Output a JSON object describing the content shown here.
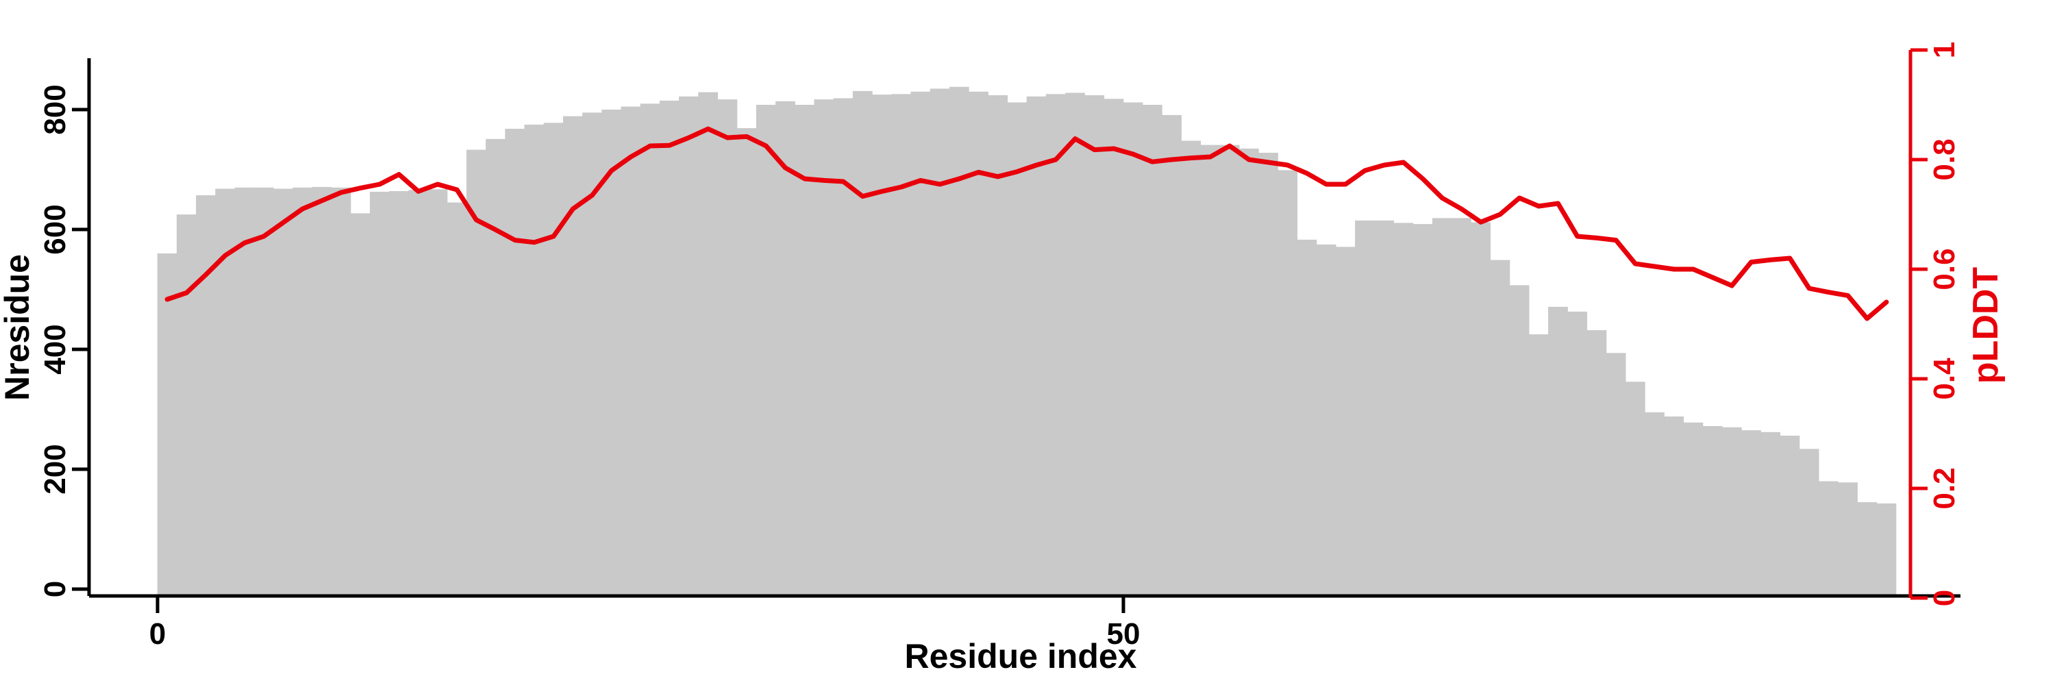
{
  "chart_data": {
    "type": "bar",
    "title": "",
    "xlabel": "Residue index",
    "ylabel_left": "Nresidue",
    "ylabel_right": "pLDDT",
    "x_tick_labels": [
      "0",
      "50"
    ],
    "x_tick_values": [
      0,
      50
    ],
    "y_left_tick_labels": [
      "0",
      "200",
      "400",
      "600",
      "800"
    ],
    "y_left_tick_values": [
      0,
      200,
      400,
      600,
      800
    ],
    "y_right_tick_labels": [
      "0",
      "0.2",
      "0.4",
      "0.6",
      "0.8",
      "1"
    ],
    "y_right_tick_values": [
      0,
      0.2,
      0.4,
      0.6,
      0.8,
      1
    ],
    "ylim_left": [
      0,
      886
    ],
    "ylim_right": [
      0,
      1
    ],
    "xlim": [
      0,
      90
    ],
    "grid": false,
    "legend": "none",
    "bar_color": "#c9c9c9",
    "line_color": "#e8000b",
    "axis_color_left": "#000000",
    "axis_color_right": "#e8000b",
    "series": [
      {
        "name": "Nresidue",
        "style": "bar",
        "x_is_residue_index": true,
        "values": [
          560,
          625,
          657,
          668,
          670,
          670,
          668,
          670,
          671,
          670,
          627,
          663,
          664,
          666,
          667,
          645,
          733,
          751,
          768,
          775,
          778,
          789,
          795,
          800,
          805,
          810,
          815,
          822,
          829,
          817,
          769,
          808,
          814,
          808,
          817,
          819,
          831,
          825,
          826,
          830,
          835,
          838,
          830,
          824,
          812,
          822,
          826,
          828,
          824,
          818,
          812,
          808,
          791,
          748,
          741,
          741,
          735,
          728,
          699,
          583,
          575,
          571,
          615,
          615,
          611,
          609,
          619,
          619,
          612,
          549,
          507,
          425,
          471,
          463,
          432,
          394,
          346,
          295,
          288,
          278,
          272,
          270,
          265,
          262,
          256,
          234,
          180,
          178,
          145,
          143
        ]
      },
      {
        "name": "pLDDT",
        "style": "line",
        "x_is_residue_index": true,
        "values": [
          0.545,
          0.557,
          0.59,
          0.625,
          0.648,
          0.66,
          0.685,
          0.71,
          0.725,
          0.74,
          0.748,
          0.755,
          0.773,
          0.742,
          0.755,
          0.745,
          0.69,
          0.672,
          0.653,
          0.649,
          0.66,
          0.71,
          0.735,
          0.78,
          0.805,
          0.825,
          0.826,
          0.84,
          0.856,
          0.84,
          0.842,
          0.825,
          0.785,
          0.765,
          0.762,
          0.76,
          0.733,
          0.742,
          0.75,
          0.762,
          0.755,
          0.765,
          0.777,
          0.769,
          0.778,
          0.79,
          0.8,
          0.838,
          0.818,
          0.82,
          0.81,
          0.796,
          0.8,
          0.803,
          0.805,
          0.825,
          0.8,
          0.795,
          0.79,
          0.775,
          0.755,
          0.755,
          0.78,
          0.79,
          0.795,
          0.765,
          0.73,
          0.71,
          0.686,
          0.7,
          0.73,
          0.715,
          0.72,
          0.66,
          0.657,
          0.653,
          0.61,
          0.605,
          0.6,
          0.6,
          0.585,
          0.57,
          0.613,
          0.617,
          0.62,
          0.565,
          0.558,
          0.552,
          0.51,
          0.54
        ]
      }
    ]
  }
}
